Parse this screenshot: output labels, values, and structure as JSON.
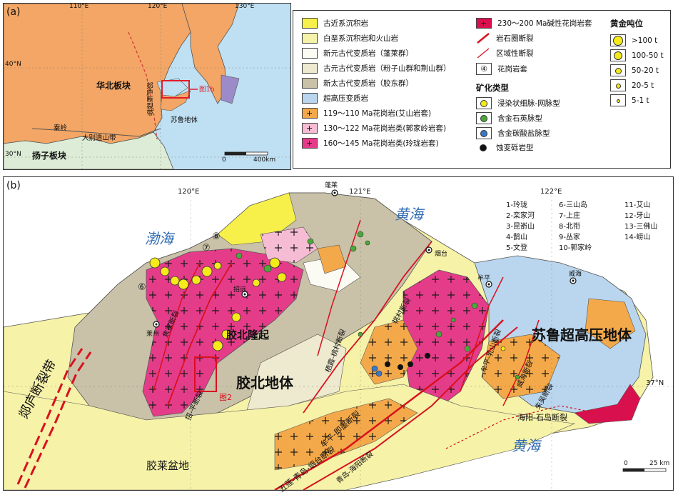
{
  "panel_a": {
    "label": "(a)",
    "lon_ticks": [
      "110°E",
      "120°E",
      "130°E"
    ],
    "lat_ticks": [
      "40°N",
      "30°N"
    ],
    "north_china_plate": "华北板块",
    "yangtze_plate": "扬子板块",
    "tanlu_fault": "郯庐断裂带",
    "sulu_terrane": "苏鲁地体",
    "qinling": "秦岭",
    "dabie": "大别造山带",
    "fig_ref": "图1b",
    "scale_left": "0",
    "scale_right": "400km"
  },
  "legend": {
    "units": [
      {
        "label": "古近系沉积岩",
        "color": "#f7f04a"
      },
      {
        "label": "白垩系沉积岩和火山岩",
        "color": "#f6f2a8"
      },
      {
        "label": "新元古代变质岩（蓬莱群）",
        "color": "#fbfbf4"
      },
      {
        "label": "古元古代变质岩（粉子山群和荆山群）",
        "color": "#eeead0"
      },
      {
        "label": "新太古代变质岩（胶东群）",
        "color": "#c9c2a8"
      },
      {
        "label": "超高压变质岩",
        "color": "#b9d6ee"
      },
      {
        "label": "119～110 Ma花岗岩(艾山岩套)",
        "color": "#f3a94a"
      },
      {
        "label": "130～122 Ma花岗岩类(郭家岭岩套)",
        "color": "#f6bcd4"
      },
      {
        "label": "160～145 Ma花岗岩类(玲珑岩套)",
        "color": "#e53c8a"
      }
    ],
    "col2": [
      {
        "label": "230～200 Ma碱性花岗岩套",
        "color": "#d8114e"
      },
      {
        "label": "岩石圈断裂"
      },
      {
        "label": "区域性断裂"
      },
      {
        "label": "花岗岩套",
        "symbol": "④"
      }
    ],
    "mineral_heading": "矿化类型",
    "mineral_types": [
      {
        "label": "浸染状细脉-网脉型",
        "color": "#f5ea1a"
      },
      {
        "label": "含金石英脉型",
        "color": "#4ca83a"
      },
      {
        "label": "含金碳酸盐脉型",
        "color": "#3a78c8"
      },
      {
        "label": "蚀变砾岩型",
        "color": "#111111"
      }
    ],
    "gold_heading": "黄金吨位",
    "gold_tonnage": [
      ">100 t",
      "100-50 t",
      "50-20 t",
      "20-5 t",
      "5-1 t"
    ]
  },
  "panel_b": {
    "label": "(b)",
    "lon_ticks": [
      "120°E",
      "121°E",
      "122°E"
    ],
    "lat_tick": "37°N",
    "bohai": "渤海",
    "yellow_sea_north": "黄海",
    "yellow_sea_south": "黄海",
    "jiaobei_uplift": "胶北隆起",
    "jiaobei_terrane": "胶北地体",
    "jiaolai_basin": "胶莱盆地",
    "sulu_uhp": "苏鲁超高压地体",
    "tanlu": "郯庐断裂带",
    "faults": {
      "zhaoping": "招-平断裂",
      "jiaojia": "焦家断裂",
      "sanshandao": "三山岛",
      "qixia": "桃村断裂",
      "qixia2": "栖霞-桃村断裂",
      "muping_jimo": "牟平-即墨断裂",
      "wulian": "五莲-青岛-烟台断裂",
      "haiyang": "海阳-石岛断裂",
      "muping_rushan": "牟平-乳山断裂",
      "weihai": "威海断裂",
      "zhuwu": "朱吴断裂",
      "qingdao_haiyang": "青岛-海阳断裂"
    },
    "cities": {
      "penglai": "蓬莱",
      "yantai": "烟台",
      "muping": "牟平",
      "weihai": "威海",
      "laizhou": "莱州",
      "zhaoyuan": "招远"
    },
    "fig2_ref": "图2",
    "scale_left": "0",
    "scale_right": "25 km",
    "granite_index": [
      "1-玲珑",
      "2-栾家河",
      "3-昆嵛山",
      "4-鹊山",
      "5-文登",
      "6-三山岛",
      "7-上庄",
      "8-北衔",
      "9-丛家",
      "10-郭家岭",
      "11-艾山",
      "12-牙山",
      "13-三佛山",
      "14-崂山"
    ],
    "circled": [
      "⑥",
      "⑦",
      "⑧"
    ]
  }
}
